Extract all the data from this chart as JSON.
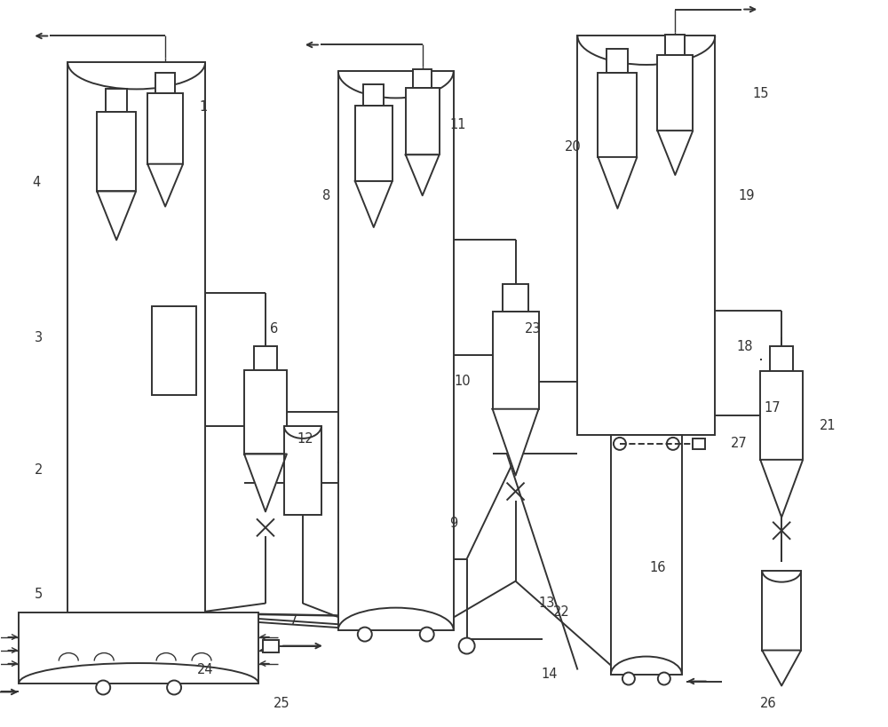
{
  "bg_color": "#ffffff",
  "line_color": "#333333",
  "lw": 1.4,
  "tlw": 1.0
}
